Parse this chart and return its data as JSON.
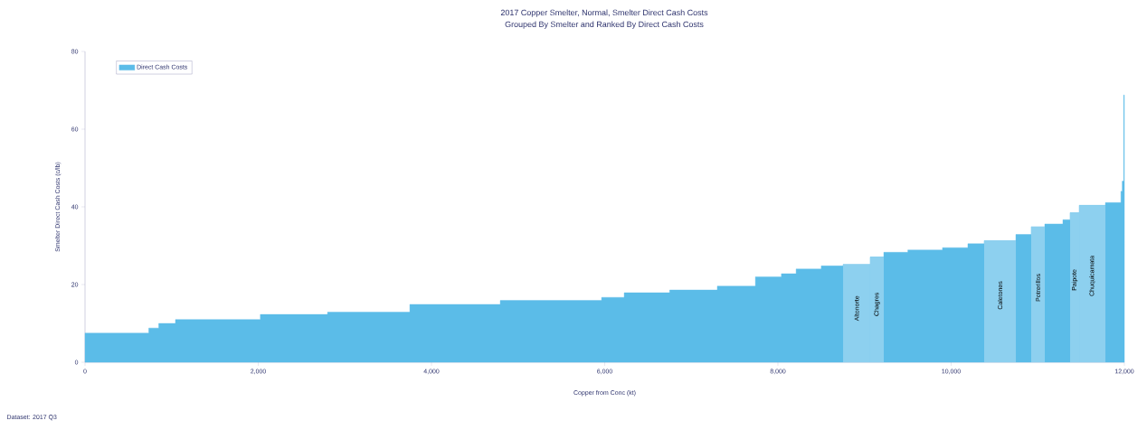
{
  "chart_data": {
    "type": "step",
    "title": "2017 Copper Smelter, Normal, Smelter Direct Cash Costs",
    "subtitle": "Grouped By Smelter and Ranked By Direct Cash Costs",
    "xlabel": "Copper from Conc (kt)",
    "ylabel": "Smelter Direct Cash Costs (c/lb)",
    "annotations": [
      "Dataset: 2017 Q3"
    ],
    "xlim": [
      0,
      12000
    ],
    "ylim": [
      0,
      80
    ],
    "xticks": [
      0,
      {
        "value": 2000,
        "label": "2,000"
      },
      {
        "value": 4000,
        "label": "4,000"
      },
      {
        "value": 6000,
        "label": "6,000"
      },
      {
        "value": 8000,
        "label": "8,000"
      },
      {
        "value": 10000,
        "label": "10,000"
      },
      {
        "value": 12000,
        "label": "12,000"
      }
    ],
    "yticks": [
      0,
      20,
      40,
      60,
      80
    ],
    "legend": "top left",
    "grid": false,
    "series": [
      {
        "name": "Direct Cash Costs",
        "type": "area",
        "color": "#5bbce8",
        "x": [
          0,
          736,
          851,
          1044,
          2024,
          2800,
          3750,
          4794,
          5964,
          6225,
          6750,
          7300,
          7740,
          8040,
          8210,
          8500,
          8752,
          9065,
          9222,
          9500,
          9900,
          10193,
          10381,
          10747,
          10924,
          11081,
          11290,
          11373,
          11478,
          11781,
          11960,
          11975,
          11992,
          12000
        ],
        "values": [
          7.5,
          8.8,
          10,
          11,
          12.3,
          12.9,
          14.9,
          15.9,
          16.7,
          17.9,
          18.6,
          19.6,
          22,
          22.8,
          24,
          24.8,
          25.2,
          27.1,
          28.3,
          28.9,
          29.5,
          30.5,
          31.3,
          32.9,
          34.9,
          35.6,
          36.7,
          38.5,
          40.4,
          41.1,
          44,
          46.6,
          68.8,
          68.8
        ]
      }
    ],
    "bands": [
      {
        "axis": "x",
        "from": 8752,
        "to": 9065,
        "label": "Altonorte",
        "color": "#8dd0ef"
      },
      {
        "axis": "x",
        "from": 9065,
        "to": 9222,
        "label": "Chagres",
        "color": "#8dd0ef"
      },
      {
        "axis": "x",
        "from": 10381,
        "to": 10747,
        "label": "Caletones",
        "color": "#8dd0ef"
      },
      {
        "axis": "x",
        "from": 10924,
        "to": 11081,
        "label": "Potrerillos",
        "color": "#8dd0ef"
      },
      {
        "axis": "x",
        "from": 11373,
        "to": 11478,
        "label": "Paipote",
        "color": "#8dd0ef"
      },
      {
        "axis": "x",
        "from": 11478,
        "to": 11781,
        "label": "Chuquicamata",
        "color": "#8dd0ef"
      }
    ]
  }
}
